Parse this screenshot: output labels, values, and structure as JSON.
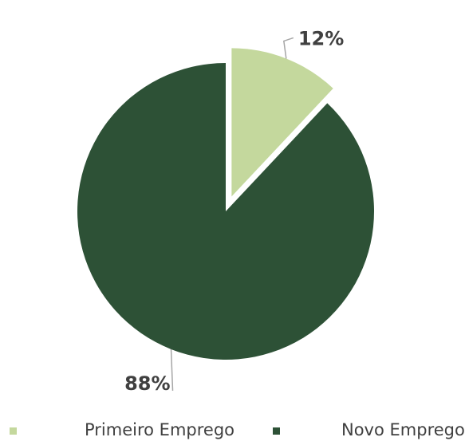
{
  "chart_data": {
    "type": "pie",
    "title": "",
    "slices": [
      {
        "label": "Primeiro Emprego",
        "value": 12,
        "data_label": "12%",
        "color": "#c4d89d",
        "exploded": true
      },
      {
        "label": "Novo Emprego",
        "value": 88,
        "data_label": "88%",
        "color": "#2d5136",
        "exploded": false
      }
    ],
    "legend": {
      "position": "bottom"
    },
    "label_color": "#404040",
    "leader_line_color": "#a6a6a6"
  }
}
